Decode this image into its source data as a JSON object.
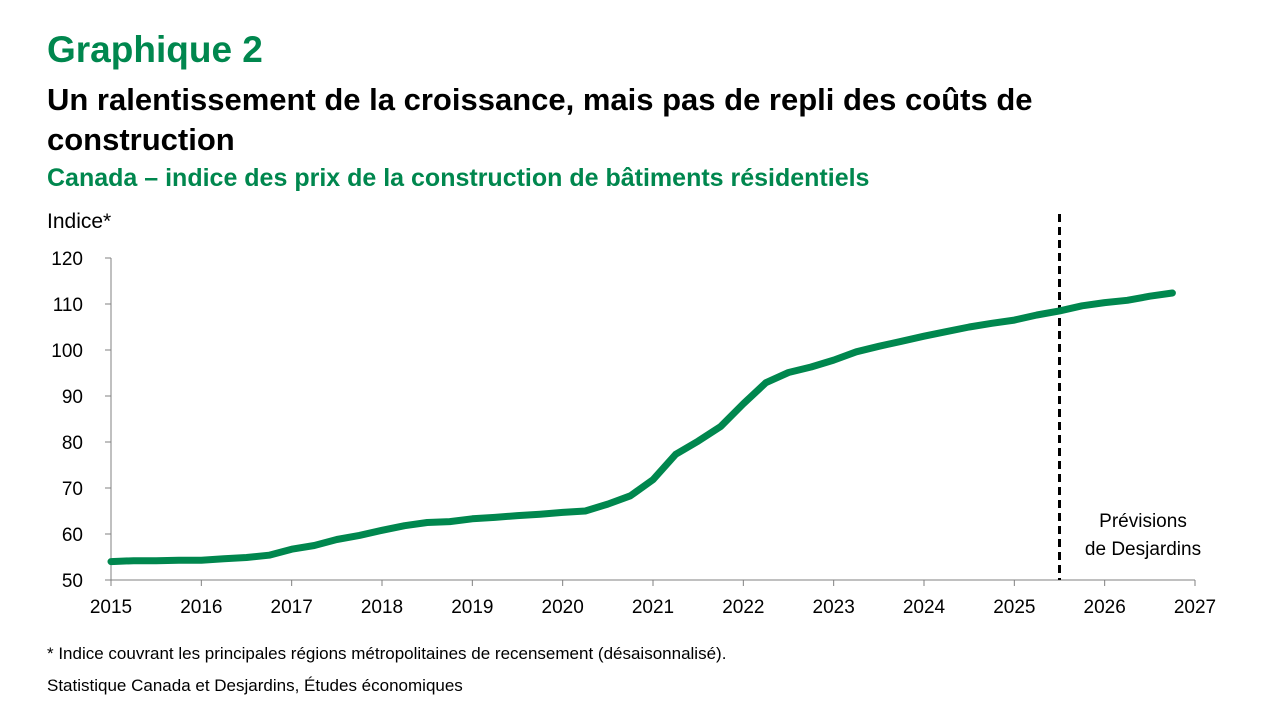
{
  "header": {
    "kicker": "Graphique 2",
    "title": "Un ralentissement de la croissance, mais pas de repli des coûts de construction",
    "subtitle": "Canada – indice des prix de la construction de bâtiments résidentiels"
  },
  "colors": {
    "accent": "#00874E",
    "text": "#000000"
  },
  "chart_data": {
    "type": "line",
    "ylabel": "Indice*",
    "xlim": [
      2015,
      2027
    ],
    "ylim": [
      50,
      120
    ],
    "yticks": [
      50,
      60,
      70,
      80,
      90,
      100,
      110,
      120
    ],
    "xticks": [
      "2015",
      "2016",
      "2017",
      "2018",
      "2019",
      "2020",
      "2021",
      "2022",
      "2023",
      "2024",
      "2025",
      "2026",
      "2027"
    ],
    "grid": false,
    "series": [
      {
        "color": "#00874E",
        "x": [
          2015.0,
          2015.25,
          2015.5,
          2015.75,
          2016.0,
          2016.25,
          2016.5,
          2016.75,
          2017.0,
          2017.25,
          2017.5,
          2017.75,
          2018.0,
          2018.25,
          2018.5,
          2018.75,
          2019.0,
          2019.25,
          2019.5,
          2019.75,
          2020.0,
          2020.25,
          2020.5,
          2020.75,
          2021.0,
          2021.25,
          2021.5,
          2021.75,
          2022.0,
          2022.25,
          2022.5,
          2022.75,
          2023.0,
          2023.25,
          2023.5,
          2023.75,
          2024.0,
          2024.25,
          2024.5,
          2024.75,
          2025.0,
          2025.25,
          2025.5,
          2025.75,
          2026.0,
          2026.25,
          2026.5,
          2026.75
        ],
        "y": [
          54.0,
          54.2,
          54.2,
          54.3,
          54.3,
          54.6,
          54.9,
          55.4,
          56.7,
          57.5,
          58.8,
          59.7,
          60.8,
          61.8,
          62.5,
          62.7,
          63.3,
          63.6,
          64.0,
          64.3,
          64.7,
          65.0,
          66.5,
          68.3,
          71.8,
          77.3,
          80.2,
          83.4,
          88.3,
          92.9,
          95.1,
          96.3,
          97.8,
          99.6,
          100.8,
          101.9,
          103.0,
          104.0,
          105.0,
          105.8,
          106.5,
          107.6,
          108.5,
          109.6,
          110.3,
          110.8,
          111.7,
          112.4
        ]
      }
    ],
    "forecast_start": 2025.5,
    "annotation": [
      "Prévisions",
      "de Desjardins"
    ]
  },
  "footer": {
    "note": "* Indice couvrant les principales régions métropolitaines de recensement (désaisonnalisé).",
    "source": "Statistique Canada et Desjardins, Études économiques"
  }
}
